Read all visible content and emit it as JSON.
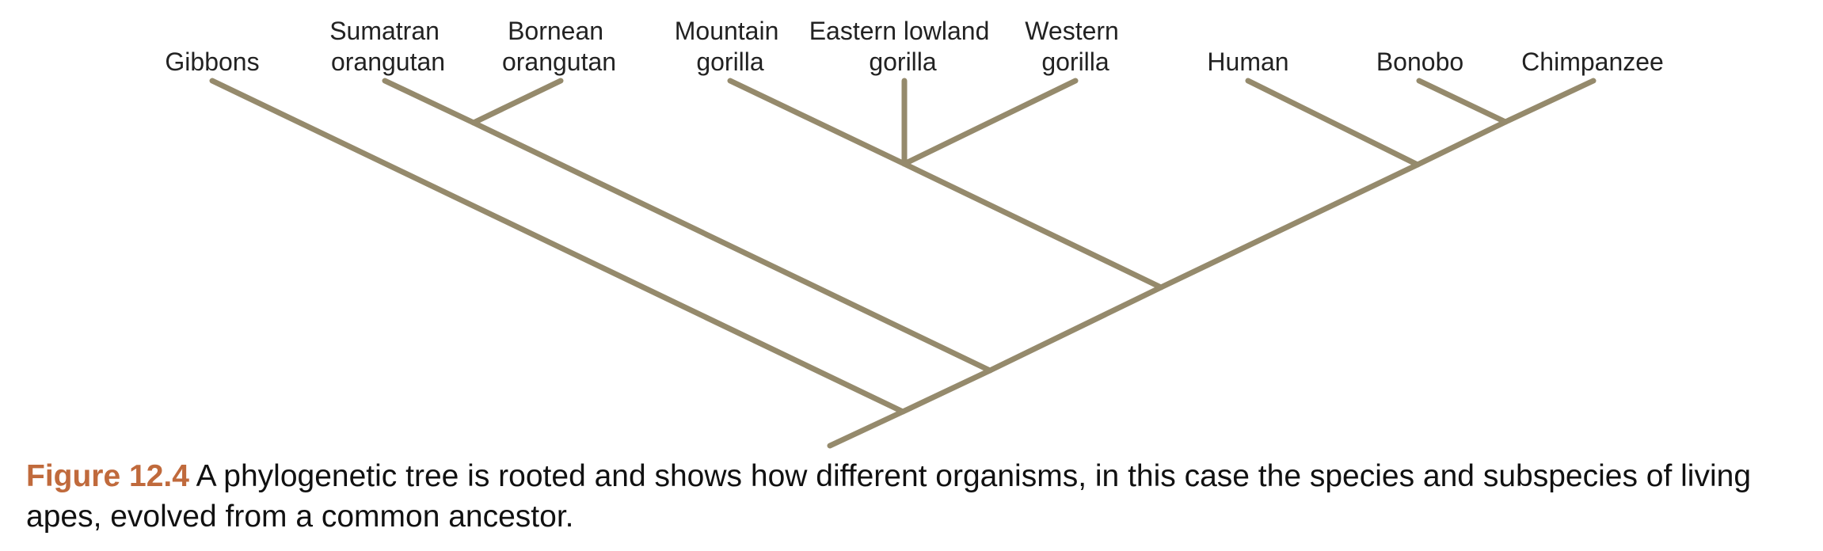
{
  "taxa": {
    "gibbons": [
      "Gibbons"
    ],
    "sumatran_orangutan": [
      "Sumatran",
      "orangutan"
    ],
    "bornean_orangutan": [
      "Bornean",
      "orangutan"
    ],
    "mountain_gorilla": [
      "Mountain",
      "gorilla"
    ],
    "eastern_lowland_gorilla": [
      "Eastern lowland",
      "gorilla"
    ],
    "western_gorilla": [
      "Western",
      "gorilla"
    ],
    "human": [
      "Human"
    ],
    "bonobo": [
      "Bonobo"
    ],
    "chimpanzee": [
      "Chimpanzee"
    ]
  },
  "colors": {
    "branch": "#958a6c",
    "figure_label": "#c06a3c"
  },
  "caption": {
    "label": "Figure 12.4",
    "text": "A phylogenetic tree is rooted and shows how different organisms, in this case the species and subspecies of living apes, evolved from a common ancestor."
  }
}
